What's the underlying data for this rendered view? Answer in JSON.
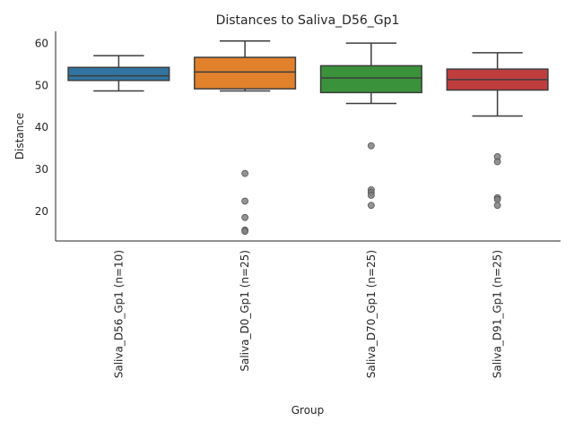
{
  "chart_data": {
    "type": "box",
    "title": "Distances to Saliva_D56_Gp1",
    "xlabel": "Group",
    "ylabel": "Distance",
    "ylim": [
      12.9,
      62.9
    ],
    "yticks": [
      20,
      30,
      40,
      50,
      60
    ],
    "grid": false,
    "legend": "none",
    "categories": [
      "Saliva_D56_Gp1 (n=10)",
      "Saliva_D0_Gp1 (n=25)",
      "Saliva_D70_Gp1 (n=25)",
      "Saliva_D91_Gp1 (n=25)"
    ],
    "boxes": [
      {
        "color": "#3274a1",
        "whisker_low": 48.7,
        "q1": 51.2,
        "median": 52.3,
        "q3": 54.3,
        "whisker_high": 57.1,
        "outliers": []
      },
      {
        "color": "#e1812c",
        "whisker_low": 48.7,
        "q1": 49.2,
        "median": 53.2,
        "q3": 56.7,
        "whisker_high": 60.6,
        "outliers": [
          29.0,
          22.4,
          18.5,
          15.5,
          15.2
        ]
      },
      {
        "color": "#3a923a",
        "whisker_low": 45.7,
        "q1": 48.3,
        "median": 51.8,
        "q3": 54.7,
        "whisker_high": 60.1,
        "outliers": [
          35.6,
          25.1,
          24.5,
          23.8,
          21.4
        ]
      },
      {
        "color": "#c03d3e",
        "whisker_low": 42.7,
        "q1": 48.9,
        "median": 51.4,
        "q3": 53.9,
        "whisker_high": 57.8,
        "outliers": [
          33.0,
          31.8,
          23.2,
          22.8,
          21.4
        ]
      }
    ]
  }
}
